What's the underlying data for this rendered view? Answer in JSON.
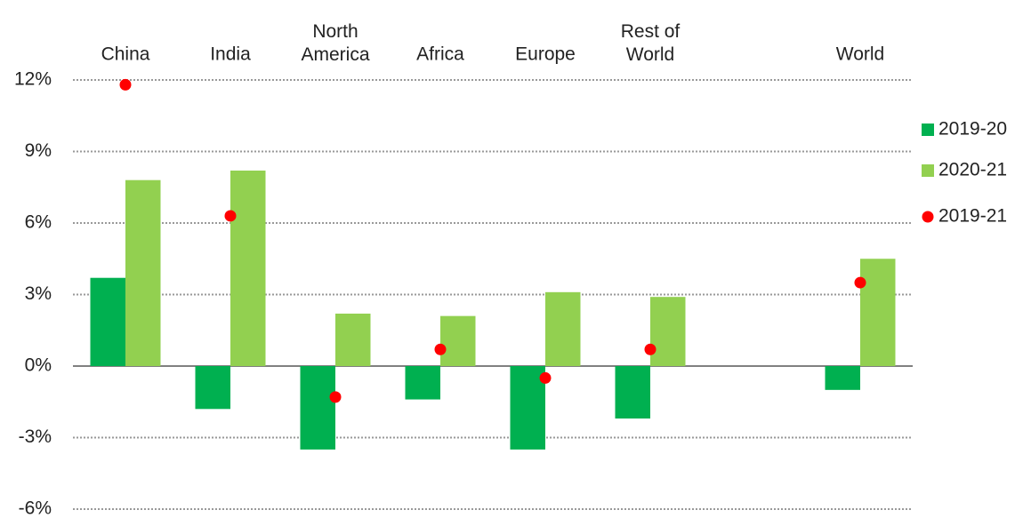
{
  "chart_data": {
    "type": "bar",
    "categories": [
      "China",
      "India",
      "North\nAmerica",
      "Africa",
      "Europe",
      "Rest of\nWorld",
      null,
      "World"
    ],
    "series": [
      {
        "name": "2019-20",
        "color": "#00b050",
        "type": "bar",
        "values": [
          3.7,
          -1.8,
          -3.5,
          -1.4,
          -3.5,
          -2.2,
          null,
          -1.0
        ]
      },
      {
        "name": "2020-21",
        "color": "#92d050",
        "type": "bar",
        "values": [
          7.8,
          8.2,
          2.2,
          2.1,
          3.1,
          2.9,
          null,
          4.5
        ]
      },
      {
        "name": "2019-21",
        "color": "#ff0000",
        "type": "scatter",
        "values": [
          11.8,
          6.3,
          -1.3,
          0.7,
          -0.5,
          0.7,
          null,
          3.5
        ]
      }
    ],
    "ylim": [
      -6,
      12
    ],
    "yticks": [
      {
        "value": -6,
        "label": "-6%"
      },
      {
        "value": -3,
        "label": "-3%"
      },
      {
        "value": 0,
        "label": "0%"
      },
      {
        "value": 3,
        "label": "3%"
      },
      {
        "value": 6,
        "label": "6%"
      },
      {
        "value": 9,
        "label": "9%"
      },
      {
        "value": 12,
        "label": "12%"
      }
    ],
    "grid": true,
    "legend": "right"
  }
}
